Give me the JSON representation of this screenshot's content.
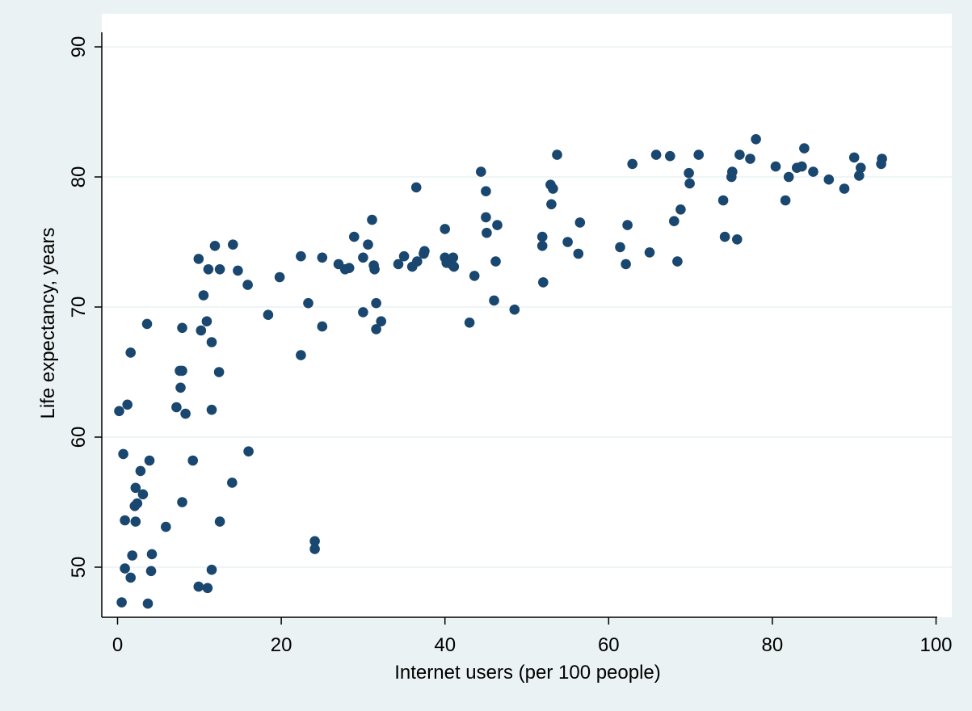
{
  "colors": {
    "outer_background": "#eaf2f3",
    "plot_background": "#ffffff",
    "gridline": "#eaf2f3",
    "marker": "#1a476f",
    "axis": "#000000"
  },
  "chart_data": {
    "type": "scatter",
    "title": "",
    "xlabel": "Internet users (per 100 people)",
    "ylabel": "Life expectancy, years",
    "xlim": [
      -2,
      102
    ],
    "ylim": [
      46.5,
      91
    ],
    "xticks": [
      0,
      20,
      40,
      60,
      80,
      100
    ],
    "yticks": [
      50,
      60,
      70,
      80,
      90
    ],
    "xtick_labels": [
      "0",
      "20",
      "40",
      "60",
      "80",
      "100"
    ],
    "ytick_labels": [
      "50",
      "60",
      "70",
      "80",
      "90"
    ],
    "grid": "horizontal",
    "legend": "none",
    "points": [
      [
        0.2,
        62.0
      ],
      [
        0.5,
        47.3
      ],
      [
        0.7,
        58.7
      ],
      [
        0.9,
        53.6
      ],
      [
        0.9,
        49.9
      ],
      [
        1.2,
        62.5
      ],
      [
        1.6,
        66.5
      ],
      [
        1.6,
        49.2
      ],
      [
        1.8,
        50.9
      ],
      [
        2.1,
        54.7
      ],
      [
        2.2,
        56.1
      ],
      [
        2.2,
        53.5
      ],
      [
        2.4,
        54.9
      ],
      [
        2.8,
        57.4
      ],
      [
        3.1,
        55.6
      ],
      [
        3.6,
        68.7
      ],
      [
        3.7,
        47.2
      ],
      [
        3.9,
        58.2
      ],
      [
        4.1,
        49.7
      ],
      [
        4.2,
        51.0
      ],
      [
        5.9,
        53.1
      ],
      [
        7.2,
        62.3
      ],
      [
        7.6,
        65.1
      ],
      [
        7.7,
        63.8
      ],
      [
        7.9,
        68.4
      ],
      [
        7.9,
        65.1
      ],
      [
        7.9,
        55.0
      ],
      [
        8.3,
        61.8
      ],
      [
        9.2,
        58.2
      ],
      [
        9.9,
        73.7
      ],
      [
        9.9,
        48.5
      ],
      [
        10.2,
        68.2
      ],
      [
        10.5,
        70.9
      ],
      [
        10.9,
        68.9
      ],
      [
        11.0,
        48.4
      ],
      [
        11.1,
        72.9
      ],
      [
        11.5,
        67.3
      ],
      [
        11.5,
        62.1
      ],
      [
        11.5,
        49.8
      ],
      [
        11.9,
        74.7
      ],
      [
        12.4,
        65.0
      ],
      [
        12.5,
        72.9
      ],
      [
        12.5,
        53.5
      ],
      [
        14.1,
        74.8
      ],
      [
        14.0,
        56.5
      ],
      [
        14.7,
        72.8
      ],
      [
        15.9,
        71.7
      ],
      [
        16.0,
        58.9
      ],
      [
        18.4,
        69.4
      ],
      [
        19.8,
        72.3
      ],
      [
        22.4,
        73.9
      ],
      [
        22.4,
        66.3
      ],
      [
        23.3,
        70.3
      ],
      [
        24.1,
        52.0
      ],
      [
        24.1,
        51.4
      ],
      [
        25.0,
        73.8
      ],
      [
        25.0,
        68.5
      ],
      [
        27.0,
        73.3
      ],
      [
        27.8,
        72.9
      ],
      [
        28.3,
        73.0
      ],
      [
        28.9,
        75.4
      ],
      [
        30.0,
        73.8
      ],
      [
        30.0,
        69.6
      ],
      [
        30.6,
        74.8
      ],
      [
        31.1,
        76.7
      ],
      [
        31.3,
        73.2
      ],
      [
        31.4,
        72.9
      ],
      [
        31.6,
        70.3
      ],
      [
        31.6,
        68.3
      ],
      [
        32.2,
        68.9
      ],
      [
        34.3,
        73.3
      ],
      [
        35.0,
        73.9
      ],
      [
        36.0,
        73.1
      ],
      [
        36.5,
        79.2
      ],
      [
        36.6,
        73.5
      ],
      [
        37.4,
        74.1
      ],
      [
        37.5,
        74.3
      ],
      [
        40.0,
        76.0
      ],
      [
        40.0,
        73.8
      ],
      [
        40.2,
        73.4
      ],
      [
        40.8,
        73.3
      ],
      [
        41.0,
        73.8
      ],
      [
        41.1,
        73.1
      ],
      [
        43.0,
        68.8
      ],
      [
        43.6,
        72.4
      ],
      [
        44.4,
        80.4
      ],
      [
        45.0,
        78.9
      ],
      [
        45.0,
        76.9
      ],
      [
        45.1,
        75.7
      ],
      [
        46.0,
        70.5
      ],
      [
        46.2,
        73.5
      ],
      [
        46.4,
        76.3
      ],
      [
        48.5,
        69.8
      ],
      [
        51.9,
        75.4
      ],
      [
        51.9,
        74.7
      ],
      [
        52.0,
        71.9
      ],
      [
        52.9,
        79.4
      ],
      [
        53.0,
        77.9
      ],
      [
        53.2,
        79.1
      ],
      [
        53.7,
        81.7
      ],
      [
        55.0,
        75.0
      ],
      [
        56.3,
        74.1
      ],
      [
        56.5,
        76.5
      ],
      [
        61.4,
        74.6
      ],
      [
        62.1,
        73.3
      ],
      [
        62.3,
        76.3
      ],
      [
        62.9,
        81.0
      ],
      [
        65.8,
        81.7
      ],
      [
        65.0,
        74.2
      ],
      [
        67.5,
        81.6
      ],
      [
        68.0,
        76.6
      ],
      [
        68.4,
        73.5
      ],
      [
        68.8,
        77.5
      ],
      [
        69.8,
        80.3
      ],
      [
        69.9,
        79.5
      ],
      [
        71.0,
        81.7
      ],
      [
        74.0,
        78.2
      ],
      [
        74.2,
        75.4
      ],
      [
        75.0,
        80.0
      ],
      [
        75.1,
        80.4
      ],
      [
        75.7,
        75.2
      ],
      [
        76.0,
        81.7
      ],
      [
        77.3,
        81.4
      ],
      [
        78.0,
        82.9
      ],
      [
        80.4,
        80.8
      ],
      [
        81.6,
        78.2
      ],
      [
        82.0,
        80.0
      ],
      [
        83.0,
        80.7
      ],
      [
        83.6,
        80.8
      ],
      [
        83.9,
        82.2
      ],
      [
        85.0,
        80.4
      ],
      [
        86.9,
        79.8
      ],
      [
        88.8,
        79.1
      ],
      [
        90.0,
        81.5
      ],
      [
        90.6,
        80.1
      ],
      [
        90.8,
        80.7
      ],
      [
        93.3,
        81.0
      ],
      [
        93.4,
        81.4
      ]
    ]
  }
}
